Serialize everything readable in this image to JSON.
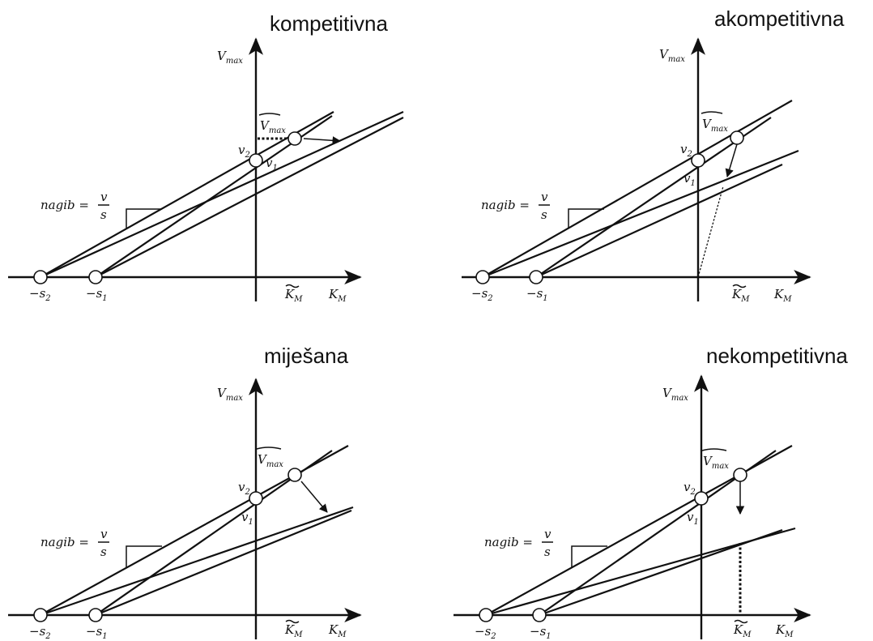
{
  "panels": [
    {
      "title": "kompetitivna"
    },
    {
      "title": "akompetitivna"
    },
    {
      "title": "miješana"
    },
    {
      "title": "nekompetitivna"
    }
  ],
  "labels": {
    "vmax": "V",
    "vmax_sub": "max",
    "vmax_tilde": "V",
    "vmax_tilde_sub": "max",
    "km": "K",
    "km_sub": "M",
    "km_tilde": "K",
    "km_tilde_sub": "M",
    "v2": "v",
    "v2_sub": "2",
    "v1": "v",
    "v1_sub": "1",
    "s2": "−s",
    "s2_sub": "2",
    "s1": "−s",
    "s1_sub": "1",
    "nagib": "nagib =",
    "nagib_num": "v",
    "nagib_den": "s"
  }
}
